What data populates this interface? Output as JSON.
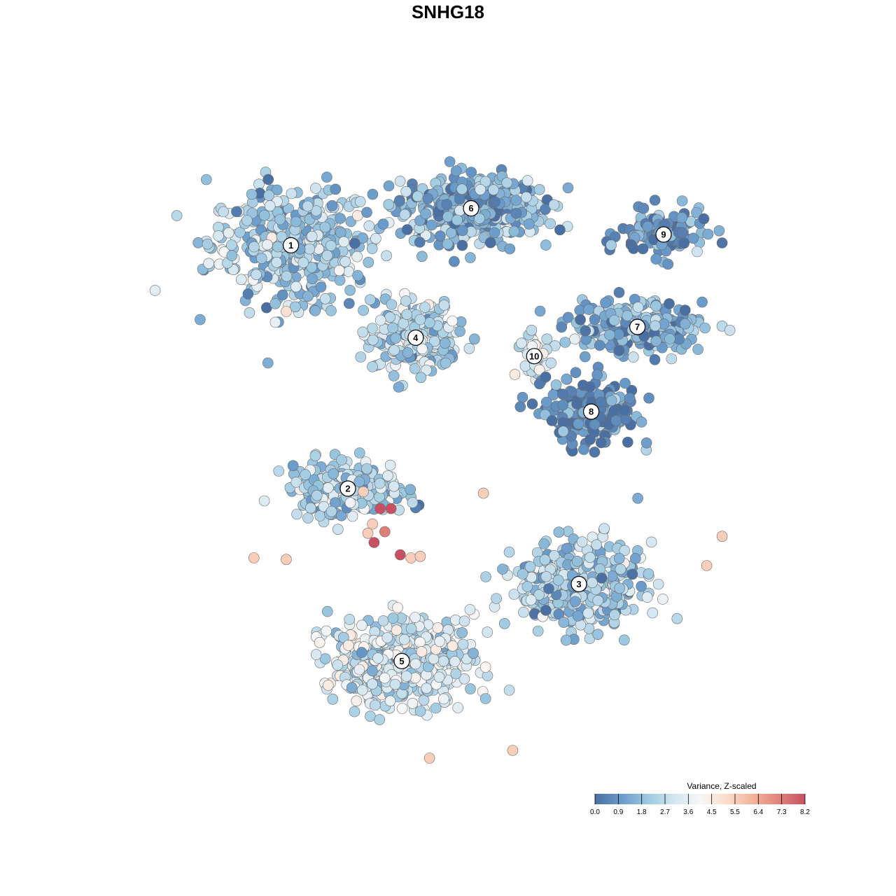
{
  "chart_data": {
    "type": "scatter",
    "title": "SNHG18",
    "xlabel": "",
    "ylabel": "",
    "grid": false,
    "legend_placement": "bottom-right",
    "colorbar": {
      "title": "Variance, Z-scaled",
      "ticks": [
        "0.0",
        "0.9",
        "1.8",
        "2.7",
        "3.6",
        "4.5",
        "5.5",
        "6.4",
        "7.3",
        "8.2"
      ],
      "range": [
        0.0,
        8.2
      ],
      "colors": [
        "#4a6fa3",
        "#6a9ccb",
        "#9cc8e0",
        "#d1e5f0",
        "#f7f7f7",
        "#fbdccb",
        "#f3b39a",
        "#e0847b",
        "#c85062"
      ]
    },
    "clusters": [
      {
        "label": "1",
        "x": -10.2,
        "y": 11.8,
        "spread": [
          5.2,
          3.8
        ],
        "value": 2.2,
        "n": 420
      },
      {
        "label": "6",
        "x": 1.5,
        "y": 14.2,
        "spread": [
          4.8,
          2.2
        ],
        "value": 1.4,
        "n": 380
      },
      {
        "label": "9",
        "x": 14.0,
        "y": 12.5,
        "spread": [
          2.8,
          1.5
        ],
        "value": 0.8,
        "n": 120
      },
      {
        "label": "7",
        "x": 12.3,
        "y": 6.5,
        "spread": [
          4.2,
          1.6
        ],
        "value": 1.3,
        "n": 220
      },
      {
        "label": "4",
        "x": -2.1,
        "y": 5.8,
        "spread": [
          2.8,
          2.3
        ],
        "value": 2.6,
        "n": 260
      },
      {
        "label": "10",
        "x": 5.6,
        "y": 4.6,
        "spread": [
          1.2,
          1.2
        ],
        "value": 3.1,
        "n": 40
      },
      {
        "label": "8",
        "x": 9.3,
        "y": 1.0,
        "spread": [
          3.0,
          2.4
        ],
        "value": 0.6,
        "n": 200
      },
      {
        "label": "2",
        "x": -6.5,
        "y": -4.0,
        "spread": [
          3.8,
          1.8
        ],
        "value": 2.2,
        "n": 200
      },
      {
        "label": "3",
        "x": 8.5,
        "y": -10.2,
        "spread": [
          4.0,
          2.6
        ],
        "value": 2.2,
        "n": 420
      },
      {
        "label": "5",
        "x": -3.0,
        "y": -15.2,
        "spread": [
          4.6,
          2.8
        ],
        "value": 3.0,
        "n": 480
      }
    ],
    "highlight_points": [
      {
        "x": -3.7,
        "y": -5.3,
        "value": 8.2
      },
      {
        "x": -4.4,
        "y": -5.3,
        "value": 8.2
      },
      {
        "x": -4.8,
        "y": -7.5,
        "value": 8.2
      },
      {
        "x": -3.1,
        "y": -8.3,
        "value": 8.2
      },
      {
        "x": -4.1,
        "y": -6.8,
        "value": 7.3
      },
      {
        "x": -5.5,
        "y": -4.2,
        "value": 5.5
      },
      {
        "x": -4.9,
        "y": -6.3,
        "value": 5.5
      },
      {
        "x": -2.4,
        "y": -8.5,
        "value": 5.5
      },
      {
        "x": -1.8,
        "y": -8.4,
        "value": 5.5
      },
      {
        "x": 2.3,
        "y": -4.3,
        "value": 5.5
      },
      {
        "x": -5.2,
        "y": -6.9,
        "value": 5.5
      },
      {
        "x": 17.8,
        "y": -7.1,
        "value": 5.5
      },
      {
        "x": 16.8,
        "y": -9.0,
        "value": 5.5
      },
      {
        "x": -1.2,
        "y": -21.5,
        "value": 5.5
      },
      {
        "x": 4.2,
        "y": -21.0,
        "value": 5.5
      },
      {
        "x": -10.5,
        "y": -8.6,
        "value": 5.5
      },
      {
        "x": -12.6,
        "y": -8.5,
        "value": 5.5
      },
      {
        "x": -10.5,
        "y": 7.5,
        "value": 5.0
      }
    ]
  }
}
